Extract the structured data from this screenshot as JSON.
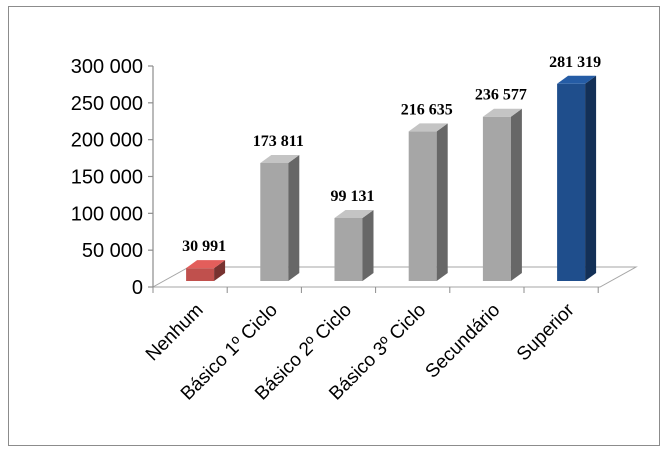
{
  "chart_data": {
    "type": "bar",
    "categories": [
      "Nenhum",
      "Básico 1º Ciclo",
      "Básico 2º Ciclo",
      "Básico 3º Ciclo",
      "Secundário",
      "Superior"
    ],
    "values": [
      30991,
      173811,
      99131,
      216635,
      236577,
      281319
    ],
    "value_labels": [
      "30 991",
      "173 811",
      "99 131",
      "216 635",
      "236 577",
      "281 319"
    ],
    "ylim": [
      0,
      300000
    ],
    "y_ticks": [
      0,
      50000,
      100000,
      150000,
      200000,
      250000,
      300000
    ],
    "y_tick_labels": [
      "0",
      "50 000",
      "100 000",
      "150 000",
      "200 000",
      "250 000",
      "300 000"
    ],
    "bar_colors": [
      "#c0504d",
      "#a6a6a6",
      "#a6a6a6",
      "#a6a6a6",
      "#a6a6a6",
      "#1f4e8c"
    ],
    "grid": false,
    "legend": "none",
    "style": "3d-column"
  }
}
